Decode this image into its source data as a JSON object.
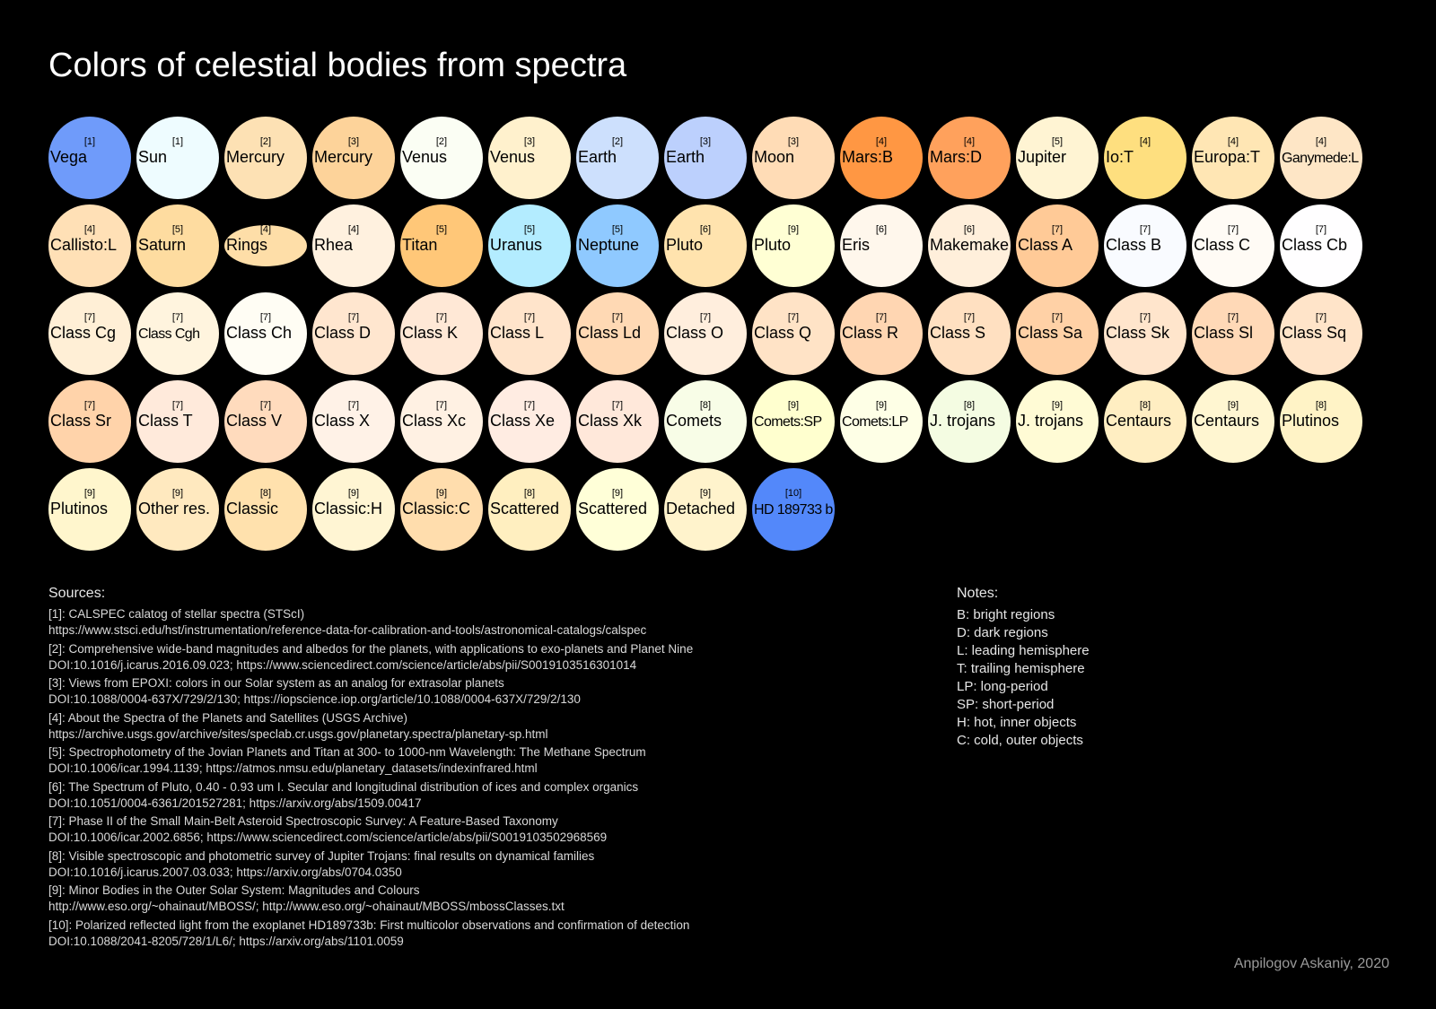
{
  "title": "Colors of celestial bodies from spectra",
  "bodies": [
    {
      "ref": "[1]",
      "name": "Vega",
      "color": "#6f9bfa"
    },
    {
      "ref": "[1]",
      "name": "Sun",
      "color": "#eefcff"
    },
    {
      "ref": "[2]",
      "name": "Mercury",
      "color": "#fde1b4"
    },
    {
      "ref": "[3]",
      "name": "Mercury",
      "color": "#fdd39a"
    },
    {
      "ref": "[2]",
      "name": "Venus",
      "color": "#fbfef4"
    },
    {
      "ref": "[3]",
      "name": "Venus",
      "color": "#fff1cd"
    },
    {
      "ref": "[2]",
      "name": "Earth",
      "color": "#cde0fd"
    },
    {
      "ref": "[3]",
      "name": "Earth",
      "color": "#bcd0fd"
    },
    {
      "ref": "[3]",
      "name": "Moon",
      "color": "#ffdcb6"
    },
    {
      "ref": "[4]",
      "name": "Mars:B",
      "color": "#ff9743"
    },
    {
      "ref": "[4]",
      "name": "Mars:D",
      "color": "#ffa15c"
    },
    {
      "ref": "[5]",
      "name": "Jupiter",
      "color": "#fff4d3"
    },
    {
      "ref": "[4]",
      "name": "Io:T",
      "color": "#fedf7f"
    },
    {
      "ref": "[4]",
      "name": "Europa:T",
      "color": "#ffe6b4"
    },
    {
      "ref": "[4]",
      "name": "Ganymede:L",
      "color": "#fee6c6",
      "small": true
    },
    {
      "ref": "[4]",
      "name": "Callisto:L",
      "color": "#ffe0b6"
    },
    {
      "ref": "[5]",
      "name": "Saturn",
      "color": "#fedca0"
    },
    {
      "ref": "[4]",
      "name": "Rings",
      "color": "#fedea8",
      "rings": true
    },
    {
      "ref": "[4]",
      "name": "Rhea",
      "color": "#fff1df"
    },
    {
      "ref": "[5]",
      "name": "Titan",
      "color": "#ffc778"
    },
    {
      "ref": "[5]",
      "name": "Uranus",
      "color": "#b3ecff"
    },
    {
      "ref": "[5]",
      "name": "Neptune",
      "color": "#8fc9ff"
    },
    {
      "ref": "[6]",
      "name": "Pluto",
      "color": "#ffe3ae"
    },
    {
      "ref": "[9]",
      "name": "Pluto",
      "color": "#ffffd4"
    },
    {
      "ref": "[6]",
      "name": "Eris",
      "color": "#fff7ec"
    },
    {
      "ref": "[6]",
      "name": "Makemake",
      "color": "#ffefdb"
    },
    {
      "ref": "[7]",
      "name": "Class A",
      "color": "#ffca97"
    },
    {
      "ref": "[7]",
      "name": "Class B",
      "color": "#f9fbff"
    },
    {
      "ref": "[7]",
      "name": "Class C",
      "color": "#fffbf5"
    },
    {
      "ref": "[7]",
      "name": "Class Cb",
      "color": "#fffeff"
    },
    {
      "ref": "[7]",
      "name": "Class Cg",
      "color": "#ffefd6"
    },
    {
      "ref": "[7]",
      "name": "Class Cgh",
      "color": "#fff4de",
      "small": true
    },
    {
      "ref": "[7]",
      "name": "Class Ch",
      "color": "#fffdf4"
    },
    {
      "ref": "[7]",
      "name": "Class D",
      "color": "#ffe6cf"
    },
    {
      "ref": "[7]",
      "name": "Class K",
      "color": "#ffe8d6"
    },
    {
      "ref": "[7]",
      "name": "Class L",
      "color": "#ffe4cb"
    },
    {
      "ref": "[7]",
      "name": "Class Ld",
      "color": "#ffd9b4"
    },
    {
      "ref": "[7]",
      "name": "Class O",
      "color": "#ffeedd"
    },
    {
      "ref": "[7]",
      "name": "Class Q",
      "color": "#ffe3c6"
    },
    {
      "ref": "[7]",
      "name": "Class R",
      "color": "#ffd6b2"
    },
    {
      "ref": "[7]",
      "name": "Class S",
      "color": "#ffe0c1"
    },
    {
      "ref": "[7]",
      "name": "Class Sa",
      "color": "#ffd1a6"
    },
    {
      "ref": "[7]",
      "name": "Class Sk",
      "color": "#ffe5cc"
    },
    {
      "ref": "[7]",
      "name": "Class Sl",
      "color": "#ffd9b7"
    },
    {
      "ref": "[7]",
      "name": "Class Sq",
      "color": "#ffe4c9"
    },
    {
      "ref": "[7]",
      "name": "Class Sr",
      "color": "#ffd3aa"
    },
    {
      "ref": "[7]",
      "name": "Class T",
      "color": "#ffeadb"
    },
    {
      "ref": "[7]",
      "name": "Class V",
      "color": "#ffdbbd"
    },
    {
      "ref": "[7]",
      "name": "Class X",
      "color": "#fff2e7"
    },
    {
      "ref": "[7]",
      "name": "Class Xc",
      "color": "#fff1e3"
    },
    {
      "ref": "[7]",
      "name": "Class Xe",
      "color": "#ffece2"
    },
    {
      "ref": "[7]",
      "name": "Class Xk",
      "color": "#ffe8da"
    },
    {
      "ref": "[8]",
      "name": "Comets",
      "color": "#f8fde7"
    },
    {
      "ref": "[9]",
      "name": "Comets:SP",
      "color": "#ffffcf",
      "small": true
    },
    {
      "ref": "[9]",
      "name": "Comets:LP",
      "color": "#feffe6",
      "small": true
    },
    {
      "ref": "[8]",
      "name": "J. trojans",
      "color": "#f4fce2"
    },
    {
      "ref": "[9]",
      "name": "J. trojans",
      "color": "#fffbd5"
    },
    {
      "ref": "[8]",
      "name": "Centaurs",
      "color": "#ffeec2"
    },
    {
      "ref": "[9]",
      "name": "Centaurs",
      "color": "#fff6d1"
    },
    {
      "ref": "[8]",
      "name": "Plutinos",
      "color": "#fff3c6"
    },
    {
      "ref": "[9]",
      "name": "Plutinos",
      "color": "#fff6cd"
    },
    {
      "ref": "[9]",
      "name": "Other res.",
      "color": "#ffe9bf"
    },
    {
      "ref": "[8]",
      "name": "Classic",
      "color": "#ffe1ad"
    },
    {
      "ref": "[9]",
      "name": "Classic:H",
      "color": "#fff5d3"
    },
    {
      "ref": "[9]",
      "name": "Classic:C",
      "color": "#ffddad"
    },
    {
      "ref": "[8]",
      "name": "Scattered",
      "color": "#ffefc0"
    },
    {
      "ref": "[9]",
      "name": "Scattered",
      "color": "#ffffd8"
    },
    {
      "ref": "[9]",
      "name": "Detached",
      "color": "#fff3cc"
    },
    {
      "ref": "[10]",
      "name": "HD 189733 b",
      "color": "#5388fa",
      "small": true
    }
  ],
  "sources": {
    "heading": "Sources:",
    "items": [
      {
        "line1": "[1]: CALSPEC calatog of stellar spectra (STScI)",
        "line2": "https://www.stsci.edu/hst/instrumentation/reference-data-for-calibration-and-tools/astronomical-catalogs/calspec"
      },
      {
        "line1": "[2]: Comprehensive wide-band magnitudes and albedos for the planets, with applications to exo-planets and Planet Nine",
        "line2": "DOI:10.1016/j.icarus.2016.09.023; https://www.sciencedirect.com/science/article/abs/pii/S0019103516301014"
      },
      {
        "line1": "[3]: Views from EPOXI: colors in our Solar system as an analog for extrasolar planets",
        "line2": "DOI:10.1088/0004-637X/729/2/130; https://iopscience.iop.org/article/10.1088/0004-637X/729/2/130"
      },
      {
        "line1": "[4]: About the Spectra of the Planets and Satellites (USGS Archive)",
        "line2": "https://archive.usgs.gov/archive/sites/speclab.cr.usgs.gov/planetary.spectra/planetary-sp.html"
      },
      {
        "line1": "[5]: Spectrophotometry of the Jovian Planets and Titan at 300- to 1000-nm Wavelength: The Methane Spectrum",
        "line2": "DOI:10.1006/icar.1994.1139; https://atmos.nmsu.edu/planetary_datasets/indexinfrared.html"
      },
      {
        "line1": "[6]: The Spectrum of Pluto, 0.40 - 0.93 um I. Secular and longitudinal distribution of ices and complex organics",
        "line2": "DOI:10.1051/0004-6361/201527281; https://arxiv.org/abs/1509.00417"
      },
      {
        "line1": "[7]: Phase II of the Small Main-Belt Asteroid Spectroscopic Survey: A Feature-Based Taxonomy",
        "line2": "DOI:10.1006/icar.2002.6856; https://www.sciencedirect.com/science/article/abs/pii/S0019103502968569"
      },
      {
        "line1": "[8]: Visible spectroscopic and photometric survey of Jupiter Trojans: final results on dynamical families",
        "line2": "DOI:10.1016/j.icarus.2007.03.033; https://arxiv.org/abs/0704.0350"
      },
      {
        "line1": "[9]: Minor Bodies in the Outer Solar System: Magnitudes and Colours",
        "line2": "http://www.eso.org/~ohainaut/MBOSS/; http://www.eso.org/~ohainaut/MBOSS/mbossClasses.txt"
      },
      {
        "line1": "[10]: Polarized reflected light from the exoplanet HD189733b: First multicolor observations and confirmation of detection",
        "line2": "DOI:10.1088/2041-8205/728/1/L6/; https://arxiv.org/abs/1101.0059"
      }
    ]
  },
  "notes": {
    "heading": "Notes:",
    "items": [
      "B: bright regions",
      "D: dark regions",
      "L: leading hemisphere",
      "T: trailing hemisphere",
      "LP: long-period",
      "SP: short-period",
      "H: hot, inner objects",
      "C: cold, outer objects"
    ]
  },
  "credit": "Anpilogov Askaniy, 2020"
}
